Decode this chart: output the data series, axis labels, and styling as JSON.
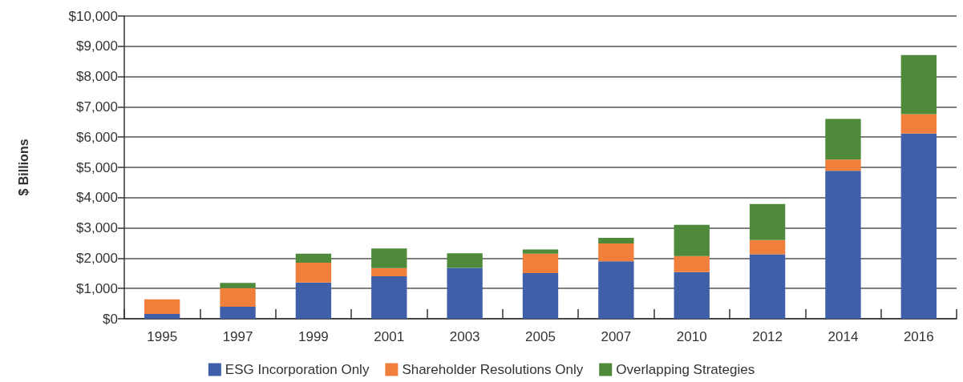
{
  "chart_data": {
    "type": "bar",
    "stacked": true,
    "ylabel": "$ Billions",
    "categories": [
      "1995",
      "1997",
      "1999",
      "2001",
      "2003",
      "2005",
      "2007",
      "2010",
      "2012",
      "2014",
      "2016"
    ],
    "series": [
      {
        "name": "ESG Incorporation Only",
        "color": "#3f5fa8",
        "values": [
          160,
          400,
          1200,
          1400,
          1680,
          1510,
          1900,
          1540,
          2130,
          4890,
          6120
        ]
      },
      {
        "name": "Shareholder Resolutions Only",
        "color": "#f07f3c",
        "values": [
          480,
          610,
          650,
          270,
          0,
          640,
          590,
          530,
          470,
          370,
          640
        ]
      },
      {
        "name": "Overlapping Strategies",
        "color": "#4e8a3a",
        "values": [
          0,
          175,
          300,
          650,
          480,
          140,
          180,
          1030,
          1190,
          1340,
          1950
        ]
      }
    ],
    "ylim": [
      0,
      10000
    ],
    "yticks": [
      {
        "value": 0,
        "label": "$0"
      },
      {
        "value": 1000,
        "label": "$1,000"
      },
      {
        "value": 2000,
        "label": "$2,000"
      },
      {
        "value": 3000,
        "label": "$3,000"
      },
      {
        "value": 4000,
        "label": "$4,000"
      },
      {
        "value": 5000,
        "label": "$5,000"
      },
      {
        "value": 6000,
        "label": "$6,000"
      },
      {
        "value": 7000,
        "label": "$7,000"
      },
      {
        "value": 8000,
        "label": "$8,000"
      },
      {
        "value": 9000,
        "label": "$9,000"
      },
      {
        "value": 10000,
        "label": "$10,000"
      }
    ],
    "grid": "y",
    "legend": "bottom"
  }
}
